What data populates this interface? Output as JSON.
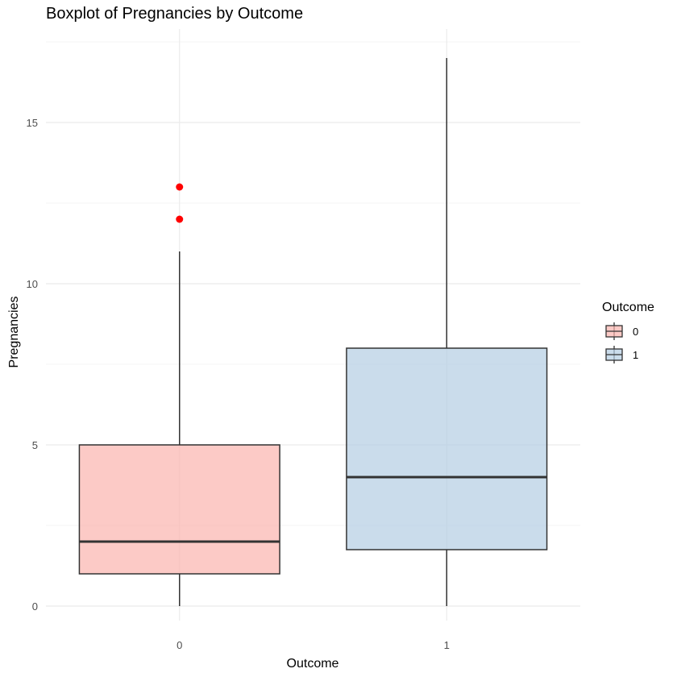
{
  "chart_data": {
    "type": "boxplot",
    "title": "Boxplot of Pregnancies by Outcome",
    "xlabel": "Outcome",
    "ylabel": "Pregnancies",
    "categories": [
      "0",
      "1"
    ],
    "y_ticks": [
      0,
      5,
      10,
      15
    ],
    "y_tick_labels": [
      "0",
      "5",
      "10",
      "15"
    ],
    "ylim": [
      -0.6,
      17.9
    ],
    "grid": true,
    "boxes": [
      {
        "category": "0",
        "whisker_low": 0,
        "q1": 1,
        "median": 2,
        "q3": 5,
        "whisker_high": 11,
        "outliers": [
          12,
          13
        ],
        "fill": "#fbb4ae"
      },
      {
        "category": "1",
        "whisker_low": 0,
        "q1": 1.75,
        "median": 4,
        "q3": 8,
        "whisker_high": 17,
        "outliers": [],
        "fill": "#b3cde3"
      }
    ],
    "outlier_color": "#ff0000",
    "legend": {
      "title": "Outcome",
      "position": "right",
      "items": [
        {
          "label": "0",
          "fill": "#fbb4ae"
        },
        {
          "label": "1",
          "fill": "#b3cde3"
        }
      ]
    }
  }
}
